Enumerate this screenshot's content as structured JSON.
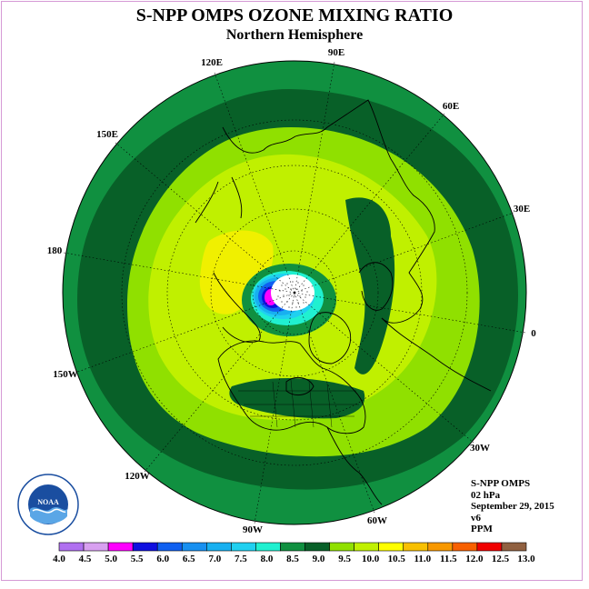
{
  "header": {
    "title": "S-NPP OMPS OZONE MIXING RATIO",
    "subtitle": "Northern Hemisphere"
  },
  "map": {
    "projection": "north-polar-stereographic",
    "longitude_labels": [
      "90E",
      "60E",
      "30E",
      "0",
      "30W",
      "60W",
      "90W",
      "120W",
      "150W",
      "180",
      "150E",
      "120E"
    ]
  },
  "info": {
    "instrument": "S-NPP OMPS",
    "level": "02 hPa",
    "date": "September 29, 2015",
    "version": "v6",
    "units": "PPM"
  },
  "logo": {
    "text": "NOAA",
    "ring_text": "NATIONAL OCEANIC AND ATMOSPHERIC ADMINISTRATION · U.S. DEPARTMENT OF COMMERCE"
  },
  "colorbar": {
    "labels": [
      "4.0",
      "4.5",
      "5.0",
      "5.5",
      "6.0",
      "6.5",
      "7.0",
      "7.5",
      "8.0",
      "8.5",
      "9.0",
      "9.5",
      "10.0",
      "10.5",
      "11.0",
      "11.5",
      "12.0",
      "12.5",
      "13.0"
    ],
    "colors": [
      "#b070f0",
      "#d8a0f0",
      "#ff00ff",
      "#1010e0",
      "#1060f0",
      "#1890f0",
      "#18b0f0",
      "#20d0f0",
      "#20f0d0",
      "#109040",
      "#086028",
      "#90e000",
      "#c0f000",
      "#ffff00",
      "#f8c000",
      "#f89800",
      "#f86000",
      "#f00000",
      "#906040"
    ]
  }
}
